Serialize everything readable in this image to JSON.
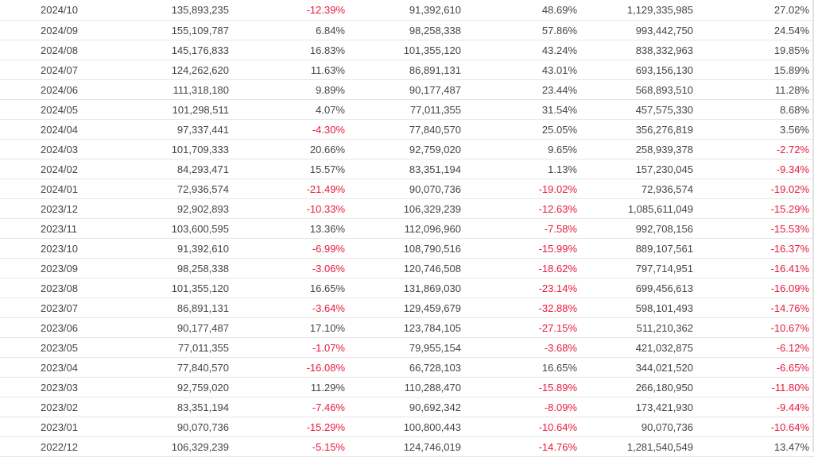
{
  "table": {
    "rows": [
      [
        "2024/10",
        "135,893,235",
        "-12.39%",
        "91,392,610",
        "48.69%",
        "1,129,335,985",
        "27.02%"
      ],
      [
        "2024/09",
        "155,109,787",
        "6.84%",
        "98,258,338",
        "57.86%",
        "993,442,750",
        "24.54%"
      ],
      [
        "2024/08",
        "145,176,833",
        "16.83%",
        "101,355,120",
        "43.24%",
        "838,332,963",
        "19.85%"
      ],
      [
        "2024/07",
        "124,262,620",
        "11.63%",
        "86,891,131",
        "43.01%",
        "693,156,130",
        "15.89%"
      ],
      [
        "2024/06",
        "111,318,180",
        "9.89%",
        "90,177,487",
        "23.44%",
        "568,893,510",
        "11.28%"
      ],
      [
        "2024/05",
        "101,298,511",
        "4.07%",
        "77,011,355",
        "31.54%",
        "457,575,330",
        "8.68%"
      ],
      [
        "2024/04",
        "97,337,441",
        "-4.30%",
        "77,840,570",
        "25.05%",
        "356,276,819",
        "3.56%"
      ],
      [
        "2024/03",
        "101,709,333",
        "20.66%",
        "92,759,020",
        "9.65%",
        "258,939,378",
        "-2.72%"
      ],
      [
        "2024/02",
        "84,293,471",
        "15.57%",
        "83,351,194",
        "1.13%",
        "157,230,045",
        "-9.34%"
      ],
      [
        "2024/01",
        "72,936,574",
        "-21.49%",
        "90,070,736",
        "-19.02%",
        "72,936,574",
        "-19.02%"
      ],
      [
        "2023/12",
        "92,902,893",
        "-10.33%",
        "106,329,239",
        "-12.63%",
        "1,085,611,049",
        "-15.29%"
      ],
      [
        "2023/11",
        "103,600,595",
        "13.36%",
        "112,096,960",
        "-7.58%",
        "992,708,156",
        "-15.53%"
      ],
      [
        "2023/10",
        "91,392,610",
        "-6.99%",
        "108,790,516",
        "-15.99%",
        "889,107,561",
        "-16.37%"
      ],
      [
        "2023/09",
        "98,258,338",
        "-3.06%",
        "120,746,508",
        "-18.62%",
        "797,714,951",
        "-16.41%"
      ],
      [
        "2023/08",
        "101,355,120",
        "16.65%",
        "131,869,030",
        "-23.14%",
        "699,456,613",
        "-16.09%"
      ],
      [
        "2023/07",
        "86,891,131",
        "-3.64%",
        "129,459,679",
        "-32.88%",
        "598,101,493",
        "-14.76%"
      ],
      [
        "2023/06",
        "90,177,487",
        "17.10%",
        "123,784,105",
        "-27.15%",
        "511,210,362",
        "-10.67%"
      ],
      [
        "2023/05",
        "77,011,355",
        "-1.07%",
        "79,955,154",
        "-3.68%",
        "421,032,875",
        "-6.12%"
      ],
      [
        "2023/04",
        "77,840,570",
        "-16.08%",
        "66,728,103",
        "16.65%",
        "344,021,520",
        "-6.65%"
      ],
      [
        "2023/03",
        "92,759,020",
        "11.29%",
        "110,288,470",
        "-15.89%",
        "266,180,950",
        "-11.80%"
      ],
      [
        "2023/02",
        "83,351,194",
        "-7.46%",
        "90,692,342",
        "-8.09%",
        "173,421,930",
        "-9.44%"
      ],
      [
        "2023/01",
        "90,070,736",
        "-15.29%",
        "100,800,443",
        "-10.64%",
        "90,070,736",
        "-10.64%"
      ],
      [
        "2022/12",
        "106,329,239",
        "-5.15%",
        "124,746,019",
        "-14.76%",
        "1,281,540,549",
        "13.47%"
      ]
    ]
  },
  "colors": {
    "negative": "#e8193c",
    "text": "#444444",
    "border": "#e6e6e6"
  }
}
